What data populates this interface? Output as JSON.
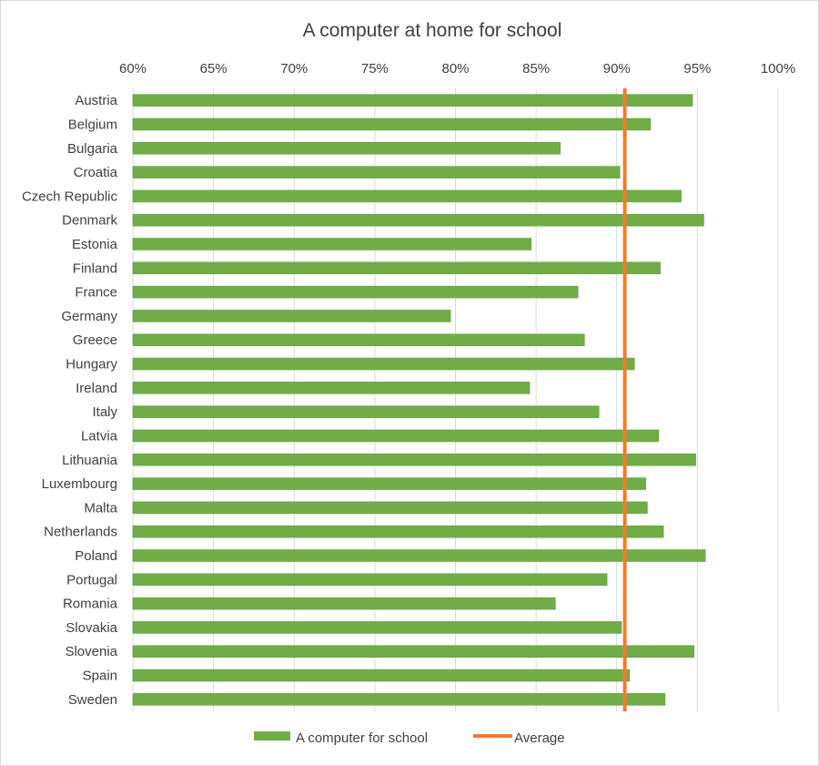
{
  "chart_data": {
    "type": "bar",
    "orientation": "horizontal",
    "title": "A computer at home for school",
    "xlabel": "",
    "ylabel": "",
    "xlim": [
      0.6,
      1.0
    ],
    "x_ticks": [
      0.6,
      0.65,
      0.7,
      0.75,
      0.8,
      0.85,
      0.9,
      0.95,
      1.0
    ],
    "x_tick_labels": [
      "60%",
      "65%",
      "70%",
      "75%",
      "80%",
      "85%",
      "90%",
      "95%",
      "100%"
    ],
    "x_axis_position": "top",
    "grid": true,
    "categories": [
      "Austria",
      "Belgium",
      "Bulgaria",
      "Croatia",
      "Czech Republic",
      "Denmark",
      "Estonia",
      "Finland",
      "France",
      "Germany",
      "Greece",
      "Hungary",
      "Ireland",
      "Italy",
      "Latvia",
      "Lithuania",
      "Luxembourg",
      "Malta",
      "Netherlands",
      "Poland",
      "Portugal",
      "Romania",
      "Slovakia",
      "Slovenia",
      "Spain",
      "Sweden"
    ],
    "series": [
      {
        "name": "A computer for school",
        "color": "#70ad47",
        "values": [
          0.947,
          0.921,
          0.865,
          0.902,
          0.94,
          0.954,
          0.847,
          0.927,
          0.876,
          0.797,
          0.88,
          0.911,
          0.846,
          0.889,
          0.926,
          0.949,
          0.918,
          0.919,
          0.929,
          0.955,
          0.894,
          0.862,
          0.903,
          0.948,
          0.908,
          0.93
        ]
      }
    ],
    "reference_line": {
      "name": "Average",
      "value": 0.905,
      "color": "#ed7d31"
    },
    "legend_position": "bottom"
  }
}
